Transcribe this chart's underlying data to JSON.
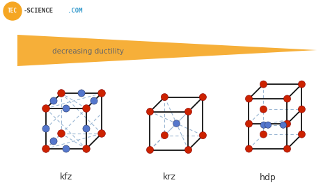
{
  "bg_color": "#ffffff",
  "arrow_color": "#f5a623",
  "arrow_text": "decreasing ductility",
  "arrow_text_color": "#666666",
  "logo_tec": "TEC",
  "logo_science": "-SCIENCE",
  "logo_com": ".COM",
  "logo_circle_color": "#f5a623",
  "logo_science_color": "#333333",
  "logo_com_color": "#3399cc",
  "red_color": "#cc2200",
  "blue_color": "#5577cc",
  "edge_color": "#111111",
  "dashed_color": "#88aacc",
  "labels": [
    "kfz",
    "krz",
    "hdp"
  ],
  "label_color": "#333333",
  "label_fontsize": 9
}
